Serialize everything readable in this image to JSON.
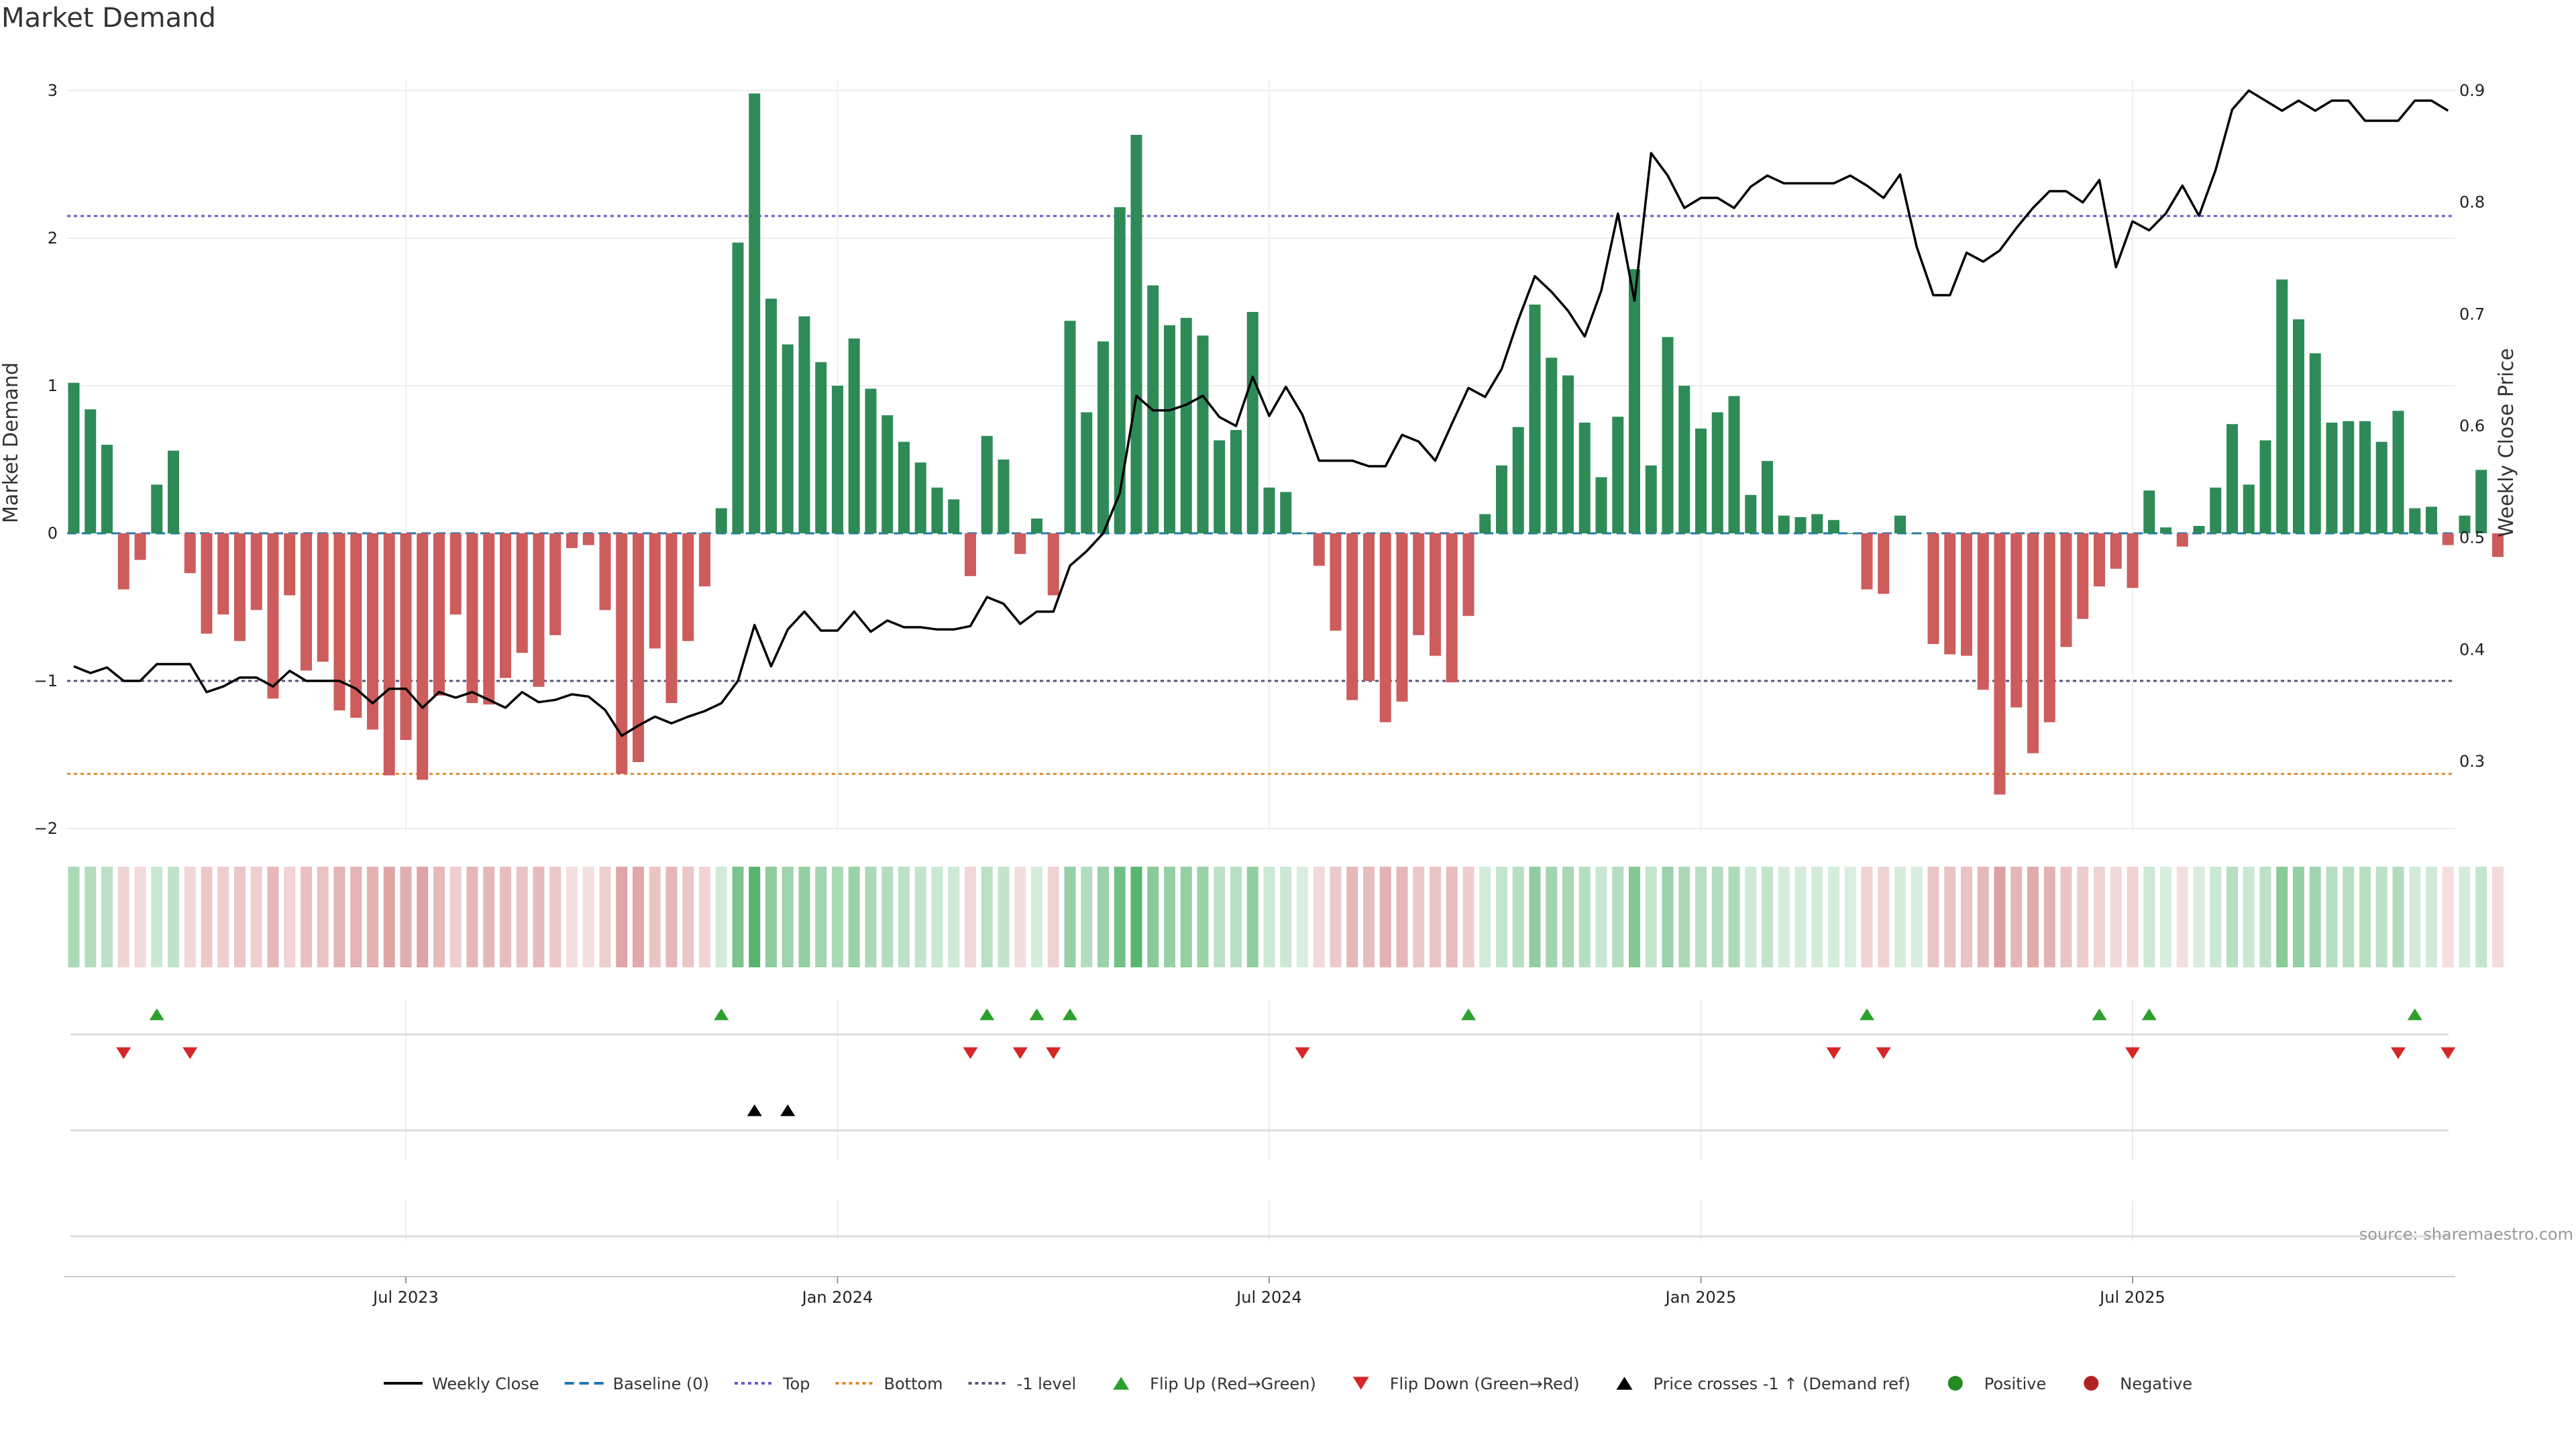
{
  "chart_data": {
    "type": "bar",
    "title": "Market Demand",
    "ylabel": "Market Demand",
    "y2label": "Weekly Close Price",
    "ylim": [
      -2.0,
      3.0
    ],
    "y2lim": [
      0.24,
      0.9
    ],
    "yticks": [
      "−2",
      "−1",
      "0",
      "1",
      "2",
      "3"
    ],
    "y2ticks": [
      "0.3",
      "0.4",
      "0.5",
      "0.6",
      "0.7",
      "0.8",
      "0.9"
    ],
    "xtick_labels": [
      {
        "label": "Jul 2023",
        "week": 20
      },
      {
        "label": "Jan 2024",
        "week": 46
      },
      {
        "label": "Jul 2024",
        "week": 72
      },
      {
        "label": "Jan 2025",
        "week": 98
      },
      {
        "label": "Jul 2025",
        "week": 124
      }
    ],
    "reference_lines": {
      "top": 2.15,
      "bottom": -1.63,
      "minus_one": -1.0,
      "baseline": 0
    },
    "source": "source: sharemaestro.com",
    "demand": [
      1.02,
      0.84,
      0.6,
      -0.38,
      -0.18,
      0.33,
      0.56,
      -0.27,
      -0.68,
      -0.55,
      -0.73,
      -0.52,
      -1.12,
      -0.42,
      -0.93,
      -0.87,
      -1.2,
      -1.25,
      -1.33,
      -1.64,
      -1.4,
      -1.67,
      -1.1,
      -0.55,
      -1.15,
      -1.16,
      -0.98,
      -0.81,
      -1.04,
      -0.69,
      -0.1,
      -0.08,
      -0.52,
      -1.63,
      -1.55,
      -0.78,
      -1.15,
      -0.73,
      -0.36,
      0.17,
      1.97,
      2.98,
      1.59,
      1.28,
      1.47,
      1.16,
      1.0,
      1.32,
      0.98,
      0.8,
      0.62,
      0.48,
      0.31,
      0.23,
      -0.29,
      0.66,
      0.5,
      -0.14,
      0.1,
      -0.42,
      1.44,
      0.82,
      1.3,
      2.21,
      2.7,
      1.68,
      1.41,
      1.46,
      1.34,
      0.63,
      0.7,
      1.5,
      0.31,
      0.28,
      0.0,
      -0.22,
      -0.66,
      -1.13,
      -1.0,
      -1.28,
      -1.14,
      -0.69,
      -0.83,
      -1.01,
      -0.56,
      0.13,
      0.46,
      0.72,
      1.55,
      1.19,
      1.07,
      0.75,
      0.38,
      0.79,
      1.79,
      0.46,
      1.33,
      1.0,
      0.71,
      0.82,
      0.93,
      0.26,
      0.49,
      0.12,
      0.11,
      0.13,
      0.09,
      0.0,
      -0.38,
      -0.41,
      0.12,
      0.0,
      -0.75,
      -0.82,
      -0.83,
      -1.06,
      -1.77,
      -1.18,
      -1.49,
      -1.28,
      -0.77,
      -0.58,
      -0.36,
      -0.24,
      -0.37,
      0.29,
      0.04,
      -0.09,
      0.05,
      0.31,
      0.74,
      0.33,
      0.63,
      1.72,
      1.45,
      1.22,
      0.75,
      0.76,
      0.76,
      0.62,
      0.83,
      0.17,
      0.18,
      -0.08,
      0.12,
      0.43,
      -0.16
    ],
    "weekly_close": [
      0.385,
      0.379,
      0.384,
      0.372,
      0.372,
      0.387,
      0.387,
      0.387,
      0.362,
      0.367,
      0.375,
      0.375,
      0.367,
      0.381,
      0.372,
      0.372,
      0.372,
      0.365,
      0.352,
      0.365,
      0.365,
      0.348,
      0.362,
      0.357,
      0.362,
      0.355,
      0.348,
      0.362,
      0.353,
      0.355,
      0.36,
      0.358,
      0.346,
      0.323,
      0.332,
      0.34,
      0.334,
      0.34,
      0.345,
      0.352,
      0.372,
      0.422,
      0.385,
      0.418,
      0.434,
      0.417,
      0.417,
      0.434,
      0.416,
      0.426,
      0.42,
      0.42,
      0.418,
      0.418,
      0.421,
      0.447,
      0.441,
      0.423,
      0.434,
      0.434,
      0.475,
      0.488,
      0.504,
      0.54,
      0.627,
      0.614,
      0.614,
      0.619,
      0.627,
      0.608,
      0.6,
      0.644,
      0.609,
      0.635,
      0.61,
      0.569,
      0.569,
      0.569,
      0.564,
      0.564,
      0.592,
      0.586,
      0.569,
      0.602,
      0.634,
      0.626,
      0.651,
      0.695,
      0.734,
      0.72,
      0.703,
      0.68,
      0.721,
      0.79,
      0.712,
      0.844,
      0.824,
      0.795,
      0.804,
      0.804,
      0.795,
      0.814,
      0.824,
      0.817,
      0.817,
      0.817,
      0.817,
      0.824,
      0.815,
      0.804,
      0.825,
      0.76,
      0.717,
      0.717,
      0.755,
      0.747,
      0.757,
      0.777,
      0.795,
      0.81,
      0.81,
      0.8,
      0.82,
      0.742,
      0.783,
      0.775,
      0.79,
      0.815,
      0.788,
      0.829,
      0.883,
      0.9,
      0.891,
      0.882,
      0.891,
      0.882,
      0.891,
      0.891,
      0.873,
      0.873,
      0.873,
      0.891,
      0.891,
      0.882
    ],
    "flip_up_weeks": [
      5,
      39,
      55,
      58,
      60,
      84,
      108,
      122,
      125,
      141
    ],
    "flip_down_weeks": [
      3,
      7,
      54,
      57,
      59,
      74,
      106,
      109,
      124,
      140,
      143
    ],
    "price_cross_weeks": [
      41,
      43
    ],
    "colors": {
      "positive_bar": "#2e8b57",
      "negative_bar": "#cd5c5c",
      "weekly_close": "#000000",
      "baseline": "#1f77b4",
      "top": "#6a5acd",
      "bottom": "#e08a2c",
      "minus_one": "#555577",
      "flip_up": "#2ca02c",
      "flip_down": "#d62728",
      "price_cross": "#000000",
      "positive_marker": "#228b22",
      "negative_marker": "#b22222"
    },
    "legend": [
      {
        "label": "Weekly Close",
        "kind": "line",
        "color": "#000000"
      },
      {
        "label": "Baseline (0)",
        "kind": "dash",
        "color": "#1f77b4"
      },
      {
        "label": "Top",
        "kind": "dot",
        "color": "#6a5acd"
      },
      {
        "label": "Bottom",
        "kind": "dot",
        "color": "#e08a2c"
      },
      {
        "label": "-1 level",
        "kind": "dot",
        "color": "#555577"
      },
      {
        "label": "Flip Up (Red→Green)",
        "kind": "tri-up",
        "color": "#2ca02c"
      },
      {
        "label": "Flip Down (Green→Red)",
        "kind": "tri-down",
        "color": "#d62728"
      },
      {
        "label": "Price crosses -1 ↑ (Demand ref)",
        "kind": "tri-up",
        "color": "#000000"
      },
      {
        "label": "Positive",
        "kind": "circle",
        "color": "#228b22"
      },
      {
        "label": "Negative",
        "kind": "circle",
        "color": "#b22222"
      }
    ]
  }
}
